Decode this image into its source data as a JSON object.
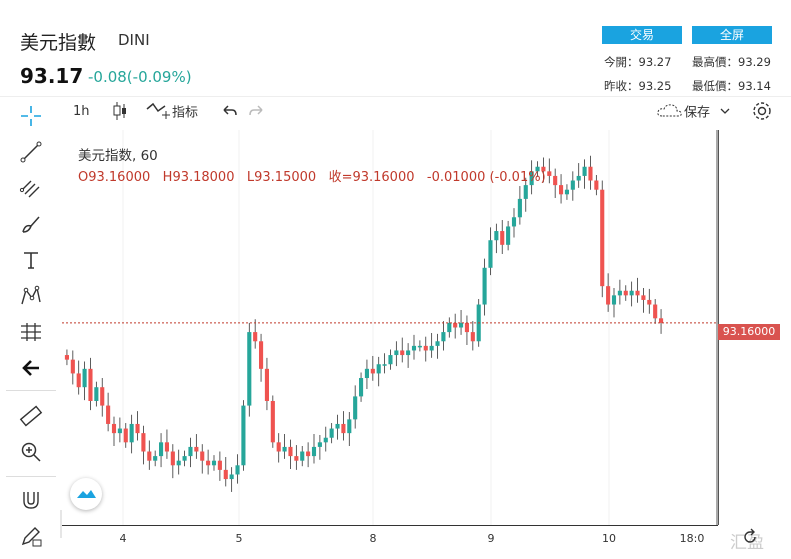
{
  "header": {
    "symbol_name": "美元指數",
    "symbol_code": "DINI",
    "price": "93.17",
    "change": "-0.08(-0.09%)"
  },
  "buttons": {
    "trade": "交易",
    "fullscreen": "全屏"
  },
  "stats": {
    "open_label": "今開：",
    "open": "93.27",
    "high_label": "最高價：",
    "high": "93.29",
    "prev_close_label": "昨收：",
    "prev_close": "93.25",
    "low_label": "最低價：",
    "low": "93.14"
  },
  "toolbar": {
    "interval": "1h",
    "indicators": "指标",
    "save": "保存"
  },
  "legend": {
    "title": "美元指数, 60",
    "o": "O93.16000",
    "h": "H93.18000",
    "l": "L93.15000",
    "c": "收=93.16000",
    "chg": "-0.01000 (-0.01%)"
  },
  "current_price_label": "93.16000",
  "x_ticks": [
    "4",
    "5",
    "8",
    "9",
    "10",
    "18:0"
  ],
  "watermark": "汇盈",
  "colors": {
    "up": "#26a69a",
    "down": "#ef5350",
    "accent": "#1aa3e0",
    "price_line": "#c0392b"
  },
  "chart_data": {
    "type": "candlestick",
    "title": "美元指数, 60",
    "current_price": 93.16,
    "x_tick_labels": [
      "4",
      "5",
      "8",
      "9",
      "10",
      "18:0"
    ],
    "closes": [
      93.08,
      93.05,
      93.02,
      93.06,
      92.99,
      93.02,
      92.98,
      92.94,
      92.92,
      92.93,
      92.9,
      92.94,
      92.92,
      92.88,
      92.86,
      92.87,
      92.9,
      92.88,
      92.85,
      92.86,
      92.87,
      92.89,
      92.88,
      92.86,
      92.85,
      92.86,
      92.84,
      92.82,
      92.83,
      92.85,
      92.98,
      93.14,
      93.12,
      93.06,
      92.99,
      92.9,
      92.88,
      92.89,
      92.87,
      92.86,
      92.88,
      92.87,
      92.89,
      92.9,
      92.91,
      92.93,
      92.94,
      92.92,
      92.95,
      93.0,
      93.04,
      93.06,
      93.05,
      93.07,
      93.07,
      93.09,
      93.1,
      93.09,
      93.1,
      93.11,
      93.11,
      93.1,
      93.11,
      93.12,
      93.14,
      93.16,
      93.15,
      93.16,
      93.14,
      93.12,
      93.2,
      93.28,
      93.34,
      93.36,
      93.33,
      93.37,
      93.39,
      93.43,
      93.46,
      93.49,
      93.5,
      93.49,
      93.48,
      93.46,
      93.44,
      93.45,
      93.47,
      93.48,
      93.5,
      93.47,
      93.45,
      93.24,
      93.2,
      93.22,
      93.23,
      93.22,
      93.23,
      93.22,
      93.21,
      93.2,
      93.17,
      93.16
    ]
  }
}
